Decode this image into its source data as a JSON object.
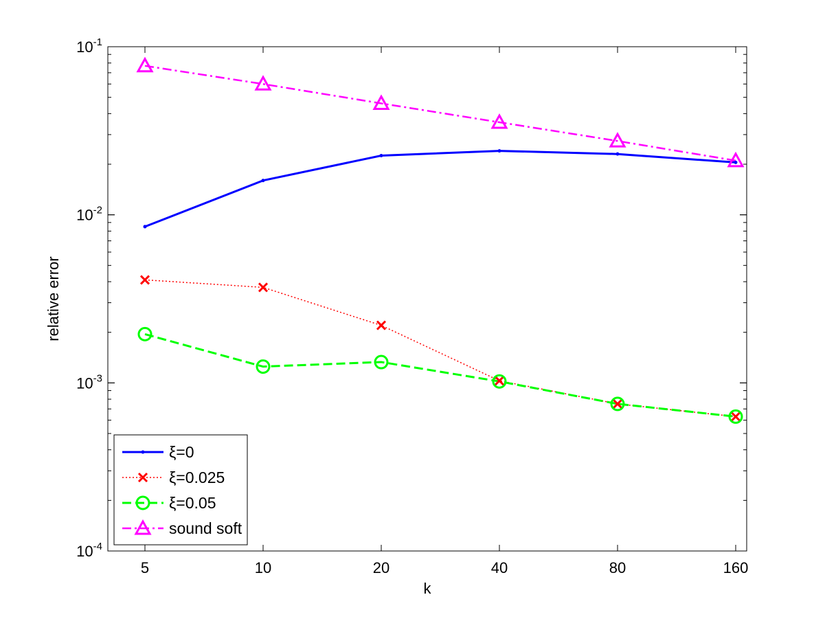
{
  "chart_data": {
    "type": "line",
    "title": "",
    "xlabel": "k",
    "ylabel": "relative error",
    "x_scale": "log2",
    "y_scale": "log10",
    "x": [
      5,
      10,
      20,
      40,
      80,
      160
    ],
    "x_ticks": [
      "5",
      "10",
      "20",
      "40",
      "80",
      "160"
    ],
    "ylim": [
      0.0001,
      0.1
    ],
    "y_ticks": [
      {
        "value": 0.1,
        "base": "10",
        "exp": "-1"
      },
      {
        "value": 0.01,
        "base": "10",
        "exp": "-2"
      },
      {
        "value": 0.001,
        "base": "10",
        "exp": "-3"
      },
      {
        "value": 0.0001,
        "base": "10",
        "exp": "-4"
      }
    ],
    "grid": false,
    "legend_position": "bottom-left",
    "series": [
      {
        "name": "ξ=0",
        "color": "#0000ff",
        "line_style": "solid",
        "marker": "point",
        "values": [
          0.0085,
          0.016,
          0.0225,
          0.024,
          0.023,
          0.0205
        ]
      },
      {
        "name": "ξ=0.025",
        "color": "#ff0000",
        "line_style": "dotted",
        "marker": "x",
        "values": [
          0.0041,
          0.0037,
          0.0022,
          0.00103,
          0.00075,
          0.00063
        ]
      },
      {
        "name": "ξ=0.05",
        "color": "#00ff00",
        "line_style": "dashed",
        "marker": "circle",
        "values": [
          0.00195,
          0.00125,
          0.00133,
          0.00102,
          0.00075,
          0.00063
        ]
      },
      {
        "name": "sound soft",
        "color": "#ff00ff",
        "line_style": "dashdot",
        "marker": "triangle",
        "values": [
          0.077,
          0.06,
          0.046,
          0.0355,
          0.0275,
          0.021
        ]
      }
    ]
  }
}
